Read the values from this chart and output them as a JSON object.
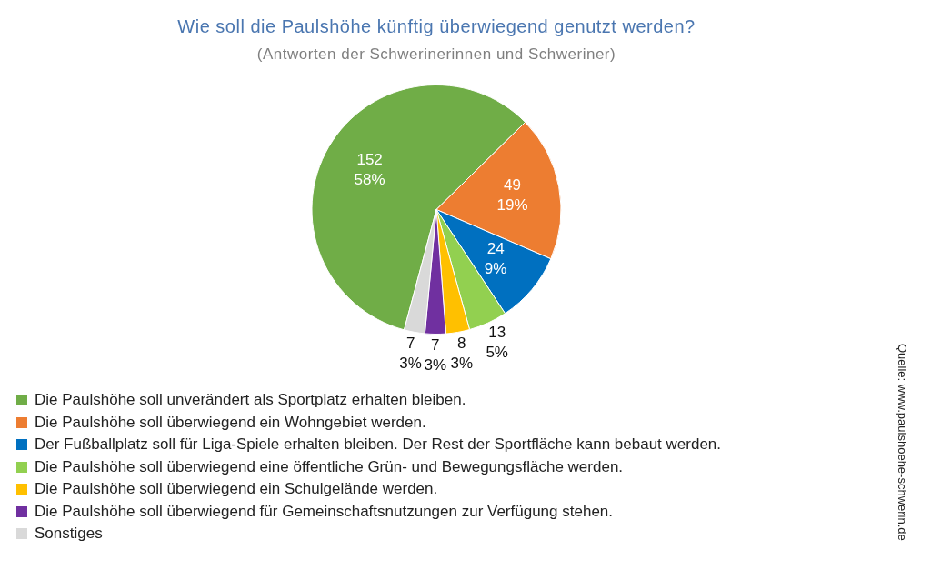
{
  "chart_data": {
    "type": "pie",
    "title": "Wie soll die Paulshöhe künftig überwiegend genutzt werden?",
    "subtitle": "(Antworten der Schwerinerinnen und Schweriner)",
    "categories": [
      "Die Paulshöhe soll unverändert als Sportplatz erhalten bleiben.",
      "Die Paulshöhe soll überwiegend ein Wohngebiet werden.",
      "Der Fußballplatz soll für Liga-Spiele erhalten bleiben. Der Rest der Sportfläche kann bebaut werden.",
      "Die Paulshöhe soll überwiegend eine öffentliche Grün- und Bewegungsfläche werden.",
      "Die Paulshöhe soll überwiegend ein Schulgelände werden.",
      "Die Paulshöhe soll überwiegend für Gemeinschaftsnutzungen zur Verfügung stehen.",
      "Sonstiges"
    ],
    "values": [
      152,
      49,
      24,
      13,
      8,
      7,
      7
    ],
    "value_labels": [
      "152\n58%",
      "49\n19%",
      "24\n9%",
      "13\n5%",
      "8\n3%",
      "7\n3%",
      "7\n3%"
    ],
    "colors": [
      "#70ad47",
      "#ed7d31",
      "#0070c0",
      "#92d050",
      "#ffc000",
      "#7030a0",
      "#d9d9d9"
    ],
    "legend": "bottom left",
    "annotations": [
      "Quelle: www.paulshoehe-schwerin.de"
    ]
  }
}
